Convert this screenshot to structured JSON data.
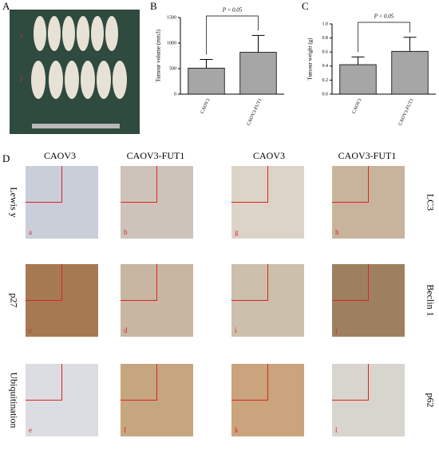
{
  "panel_a": {
    "label": "A",
    "marks": [
      "1",
      "2"
    ]
  },
  "chart_data": [
    {
      "type": "bar",
      "panel": "B",
      "ylabel": "Tumour volume (mm3)",
      "annotation": "P < 0.05",
      "categories": [
        "CAOV3",
        "CAOV3-FUT1"
      ],
      "values": [
        510,
        820
      ],
      "errors": [
        170,
        330
      ],
      "color": "#a6a6a6",
      "ylim": [
        0,
        1500
      ],
      "yticks": [
        0,
        500,
        1000,
        1500
      ]
    },
    {
      "type": "bar",
      "panel": "C",
      "ylabel": "Tumour weight (g)",
      "annotation": "P < 0.05",
      "categories": [
        "CAOV3",
        "CAOV3-FUT1"
      ],
      "values": [
        0.42,
        0.61
      ],
      "errors": [
        0.11,
        0.2
      ],
      "color": "#a6a6a6",
      "ylim": [
        0,
        1.0
      ],
      "yticks": [
        {
          "value": 0,
          "label": "0.0"
        },
        0.2,
        0.4,
        0.6,
        0.8,
        {
          "value": 1.0,
          "label": "1.0"
        }
      ]
    }
  ],
  "panel_d": {
    "label": "D",
    "columns": [
      "CAOV3",
      "CAOV3-FUT1",
      "CAOV3",
      "CAOV3-FUT1"
    ],
    "left_rows": [
      "Lewis y",
      "p27",
      "Ubiquitination"
    ],
    "right_rows": [
      "LC3",
      "Beclin 1",
      "p62"
    ],
    "tiles": [
      "a",
      "b",
      "g",
      "h",
      "c",
      "d",
      "i",
      "j",
      "e",
      "f",
      "k",
      "l"
    ]
  }
}
